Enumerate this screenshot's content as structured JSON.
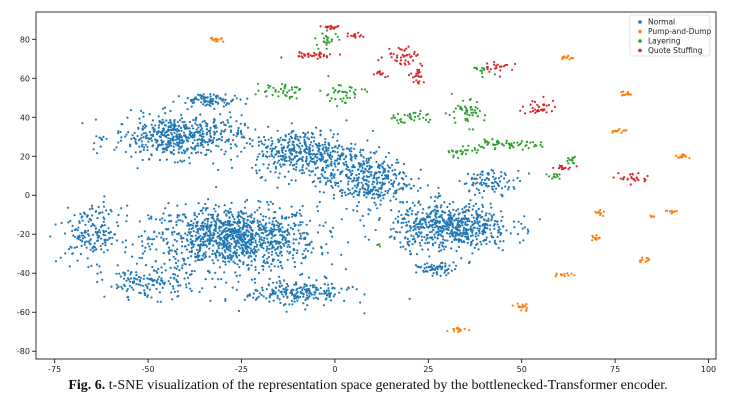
{
  "figure": {
    "fig_label": "Fig. 6.",
    "caption": "t-SNE visualization of the representation space generated by the bottlenecked-Transformer encoder."
  },
  "chart_data": {
    "type": "scatter",
    "title": "",
    "xlabel": "",
    "ylabel": "",
    "xlim": [
      -80,
      102
    ],
    "ylim": [
      -84,
      94
    ],
    "xticks": [
      -75,
      -50,
      -25,
      0,
      25,
      50,
      75,
      100
    ],
    "yticks": [
      -80,
      -60,
      -40,
      -20,
      0,
      20,
      40,
      60,
      80
    ],
    "grid": false,
    "legend_position": "top-right",
    "series": [
      {
        "name": "Normal",
        "color": "#1f77b4",
        "clusters": [
          {
            "center": [
              -27,
              -22
            ],
            "spread": [
              22,
              16
            ],
            "count": 1100
          },
          {
            "center": [
              -42,
              30
            ],
            "spread": [
              17,
              11
            ],
            "count": 520
          },
          {
            "center": [
              -8,
              22
            ],
            "spread": [
              14,
              12
            ],
            "count": 420
          },
          {
            "center": [
              8,
              8
            ],
            "spread": [
              12,
              14
            ],
            "count": 380
          },
          {
            "center": [
              31,
              -16
            ],
            "spread": [
              16,
              12
            ],
            "count": 620
          },
          {
            "center": [
              -65,
              -20
            ],
            "spread": [
              8,
              14
            ],
            "count": 170
          },
          {
            "center": [
              -10,
              -50
            ],
            "spread": [
              14,
              7
            ],
            "count": 220
          },
          {
            "center": [
              -50,
              -45
            ],
            "spread": [
              12,
              8
            ],
            "count": 140
          },
          {
            "center": [
              27,
              -38
            ],
            "spread": [
              5,
              3
            ],
            "count": 60
          },
          {
            "center": [
              -33,
              49
            ],
            "spread": [
              8,
              3
            ],
            "count": 90
          },
          {
            "center": [
              42,
              7
            ],
            "spread": [
              8,
              6
            ],
            "count": 90
          }
        ]
      },
      {
        "name": "Pump-and-Dump",
        "color": "#ff7f0e",
        "clusters": [
          {
            "center": [
              -32,
              80
            ],
            "spread": [
              2,
              1.5
            ],
            "count": 14
          },
          {
            "center": [
              62,
              71
            ],
            "spread": [
              1.5,
              1.5
            ],
            "count": 12
          },
          {
            "center": [
              78,
              52
            ],
            "spread": [
              2,
              1
            ],
            "count": 12
          },
          {
            "center": [
              76,
              33
            ],
            "spread": [
              2,
              1.5
            ],
            "count": 14
          },
          {
            "center": [
              93,
              20
            ],
            "spread": [
              2,
              1.5
            ],
            "count": 16
          },
          {
            "center": [
              90,
              -8
            ],
            "spread": [
              1.5,
              1
            ],
            "count": 10
          },
          {
            "center": [
              71,
              -9
            ],
            "spread": [
              1.5,
              1.5
            ],
            "count": 10
          },
          {
            "center": [
              70,
              -22
            ],
            "spread": [
              1.5,
              2
            ],
            "count": 12
          },
          {
            "center": [
              61,
              -41
            ],
            "spread": [
              3,
              1
            ],
            "count": 14
          },
          {
            "center": [
              50,
              -57
            ],
            "spread": [
              2,
              2.5
            ],
            "count": 16
          },
          {
            "center": [
              33,
              -69
            ],
            "spread": [
              2.5,
              1.5
            ],
            "count": 14
          },
          {
            "center": [
              83,
              -33
            ],
            "spread": [
              2,
              1.5
            ],
            "count": 10
          },
          {
            "center": [
              85,
              -11
            ],
            "spread": [
              1,
              1
            ],
            "count": 6
          }
        ]
      },
      {
        "name": "Layering",
        "color": "#2ca02c",
        "clusters": [
          {
            "center": [
              -15,
              54
            ],
            "spread": [
              6,
              4
            ],
            "count": 40
          },
          {
            "center": [
              2,
              52
            ],
            "spread": [
              6,
              6
            ],
            "count": 40
          },
          {
            "center": [
              20,
              40
            ],
            "spread": [
              8,
              3
            ],
            "count": 36
          },
          {
            "center": [
              35,
              42
            ],
            "spread": [
              5,
              7
            ],
            "count": 50
          },
          {
            "center": [
              45,
              26
            ],
            "spread": [
              10,
              2
            ],
            "count": 60
          },
          {
            "center": [
              34,
              22
            ],
            "spread": [
              5,
              3
            ],
            "count": 26
          },
          {
            "center": [
              -2,
              80
            ],
            "spread": [
              3,
              4
            ],
            "count": 24
          },
          {
            "center": [
              40,
              64
            ],
            "spread": [
              3,
              2
            ],
            "count": 12
          },
          {
            "center": [
              63,
              18
            ],
            "spread": [
              1.5,
              2
            ],
            "count": 12
          },
          {
            "center": [
              59,
              10
            ],
            "spread": [
              2,
              2
            ],
            "count": 12
          },
          {
            "center": [
              12,
              -26
            ],
            "spread": [
              1,
              1
            ],
            "count": 3
          }
        ]
      },
      {
        "name": "Quote Stuffing",
        "color": "#d62728",
        "clusters": [
          {
            "center": [
              -6,
              72
            ],
            "spread": [
              7,
              1.5
            ],
            "count": 36
          },
          {
            "center": [
              -1,
              86
            ],
            "spread": [
              3,
              1.5
            ],
            "count": 18
          },
          {
            "center": [
              6,
              82
            ],
            "spread": [
              3,
              2
            ],
            "count": 14
          },
          {
            "center": [
              18,
              72
            ],
            "spread": [
              5,
              5
            ],
            "count": 40
          },
          {
            "center": [
              22,
              62
            ],
            "spread": [
              2,
              5
            ],
            "count": 24
          },
          {
            "center": [
              44,
              66
            ],
            "spread": [
              4,
              3
            ],
            "count": 22
          },
          {
            "center": [
              55,
              45
            ],
            "spread": [
              5,
              4
            ],
            "count": 36
          },
          {
            "center": [
              61,
              14
            ],
            "spread": [
              3,
              1
            ],
            "count": 16
          },
          {
            "center": [
              80,
              9
            ],
            "spread": [
              4,
              3
            ],
            "count": 26
          },
          {
            "center": [
              12,
              62
            ],
            "spread": [
              2,
              2
            ],
            "count": 10
          }
        ]
      }
    ]
  }
}
